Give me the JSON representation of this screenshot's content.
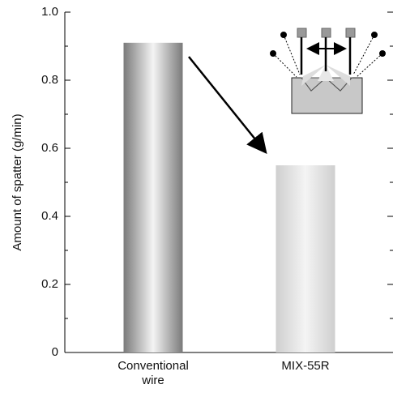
{
  "chart_data": {
    "type": "bar",
    "y_label": "Amount of spatter (g/min)",
    "categories": [
      "Conventional wire",
      "MIX-55R"
    ],
    "values": [
      0.91,
      0.55
    ],
    "colors": [
      "#7a7a7a",
      "#cfcfcf"
    ],
    "ylim": [
      0,
      1
    ],
    "yticks": [
      0,
      0.2,
      0.4,
      0.6,
      0.8,
      {
        "value": 1,
        "label": "1.0"
      }
    ],
    "minor_yticks": [
      0.1,
      0.3,
      0.5,
      0.7,
      0.9
    ]
  }
}
